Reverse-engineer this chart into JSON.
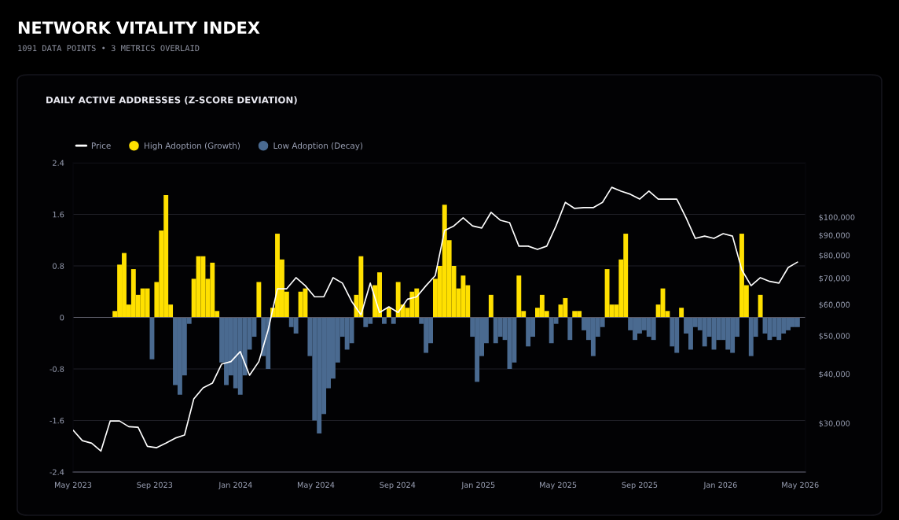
{
  "chart_data": {
    "type": "bar",
    "title": "NETWORK VITALITY INDEX",
    "subtitle": "1091 DATA POINTS • 3 METRICS OVERLAID",
    "annotations": [
      "DAILY ACTIVE ADDRESSES (Z-SCORE DEVIATION)"
    ],
    "x": [
      "2023-07-03",
      "2023-07-10",
      "2023-07-17",
      "2023-07-24",
      "2023-07-31",
      "2023-08-07",
      "2023-08-14",
      "2023-08-21",
      "2023-08-28",
      "2023-09-04",
      "2023-09-11",
      "2023-09-18",
      "2023-09-25",
      "2023-10-02",
      "2023-10-09",
      "2023-10-16",
      "2023-10-23",
      "2023-10-30",
      "2023-11-06",
      "2023-11-13",
      "2023-11-20",
      "2023-11-27",
      "2023-12-04",
      "2023-12-11",
      "2023-12-18",
      "2023-12-25",
      "2024-01-01",
      "2024-01-08",
      "2024-01-15",
      "2024-01-22",
      "2024-01-29",
      "2024-02-05",
      "2024-02-12",
      "2024-02-19",
      "2024-02-26",
      "2024-03-04",
      "2024-03-11",
      "2024-03-18",
      "2024-03-25",
      "2024-04-01",
      "2024-04-08",
      "2024-04-15",
      "2024-04-22",
      "2024-04-29",
      "2024-05-06",
      "2024-05-13",
      "2024-05-20",
      "2024-05-27",
      "2024-06-03",
      "2024-06-10",
      "2024-06-17",
      "2024-06-24",
      "2024-07-01",
      "2024-07-08",
      "2024-07-15",
      "2024-07-22",
      "2024-07-29",
      "2024-08-05",
      "2024-08-12",
      "2024-08-19",
      "2024-08-26",
      "2024-09-02",
      "2024-09-09",
      "2024-09-16",
      "2024-09-23",
      "2024-09-30",
      "2024-10-07",
      "2024-10-14",
      "2024-10-21",
      "2024-10-28",
      "2024-11-04",
      "2024-11-11",
      "2024-11-18",
      "2024-11-25",
      "2024-12-02",
      "2024-12-09",
      "2024-12-16",
      "2024-12-23",
      "2024-12-30",
      "2025-01-06",
      "2025-01-13",
      "2025-01-20",
      "2025-01-27",
      "2025-02-03",
      "2025-02-10",
      "2025-02-17",
      "2025-02-24",
      "2025-03-03",
      "2025-03-10",
      "2025-03-17",
      "2025-03-24",
      "2025-03-31",
      "2025-04-07",
      "2025-04-14",
      "2025-04-21",
      "2025-04-28",
      "2025-05-05",
      "2025-05-12",
      "2025-05-19",
      "2025-05-26",
      "2025-06-02",
      "2025-06-09",
      "2025-06-16",
      "2025-06-23",
      "2025-06-30",
      "2025-07-07",
      "2025-07-14",
      "2025-07-21",
      "2025-07-28",
      "2025-08-04",
      "2025-08-11",
      "2025-08-18",
      "2025-08-25",
      "2025-09-01",
      "2025-09-08",
      "2025-09-15",
      "2025-09-22",
      "2025-09-29",
      "2025-10-06",
      "2025-10-13",
      "2025-10-20",
      "2025-10-27",
      "2025-11-03",
      "2025-11-10",
      "2025-11-17",
      "2025-11-24",
      "2025-12-01",
      "2025-12-08",
      "2025-12-15",
      "2025-12-22",
      "2025-12-29",
      "2026-01-05",
      "2026-01-12",
      "2026-01-19",
      "2026-01-26",
      "2026-02-02",
      "2026-02-09",
      "2026-02-16",
      "2026-02-23",
      "2026-03-02",
      "2026-03-09",
      "2026-03-16",
      "2026-03-23",
      "2026-03-30",
      "2026-04-06",
      "2026-04-13",
      "2026-04-20",
      "2026-04-27"
    ],
    "series": [
      {
        "name": "Price",
        "type": "line",
        "axis": "y2",
        "color": "#ffffff",
        "x": [
          "2023-05-01",
          "2023-05-15",
          "2023-05-29",
          "2023-06-12",
          "2023-06-26",
          "2023-07-10",
          "2023-07-24",
          "2023-08-07",
          "2023-08-21",
          "2023-09-04",
          "2023-09-18",
          "2023-10-02",
          "2023-10-16",
          "2023-10-30",
          "2023-11-13",
          "2023-11-27",
          "2023-12-11",
          "2023-12-25",
          "2024-01-08",
          "2024-01-22",
          "2024-02-05",
          "2024-02-19",
          "2024-03-04",
          "2024-03-18",
          "2024-04-01",
          "2024-04-15",
          "2024-04-29",
          "2024-05-13",
          "2024-05-27",
          "2024-06-10",
          "2024-06-24",
          "2024-07-08",
          "2024-07-22",
          "2024-08-05",
          "2024-08-19",
          "2024-09-02",
          "2024-09-16",
          "2024-09-30",
          "2024-10-14",
          "2024-10-28",
          "2024-11-11",
          "2024-11-25",
          "2024-12-09",
          "2024-12-23",
          "2025-01-06",
          "2025-01-20",
          "2025-02-03",
          "2025-02-17",
          "2025-03-03",
          "2025-03-17",
          "2025-03-31",
          "2025-04-14",
          "2025-04-28",
          "2025-05-12",
          "2025-05-26",
          "2025-06-09",
          "2025-06-23",
          "2025-07-07",
          "2025-07-21",
          "2025-08-04",
          "2025-08-18",
          "2025-09-01",
          "2025-09-15",
          "2025-09-29",
          "2025-10-13",
          "2025-10-27",
          "2025-11-10",
          "2025-11-24",
          "2025-12-08",
          "2025-12-22",
          "2026-01-05",
          "2026-01-19",
          "2026-02-02",
          "2026-02-16",
          "2026-03-02",
          "2026-03-16",
          "2026-03-30",
          "2026-04-13",
          "2026-04-27"
        ],
        "values": [
          28800,
          27100,
          26700,
          25500,
          30400,
          30400,
          29400,
          29300,
          26200,
          26000,
          26700,
          27500,
          28000,
          34600,
          36900,
          37900,
          42400,
          43000,
          45600,
          39700,
          43000,
          51700,
          65800,
          65800,
          70200,
          67000,
          62800,
          62800,
          70200,
          68000,
          61100,
          56500,
          68000,
          57300,
          59200,
          57300,
          61900,
          62800,
          67000,
          71100,
          92500,
          95000,
          99600,
          95000,
          93800,
          102800,
          98200,
          96800,
          84400,
          84400,
          82800,
          84400,
          95000,
          109000,
          105200,
          105700,
          105700,
          109000,
          119000,
          116400,
          114300,
          111100,
          116400,
          111100,
          111100,
          111100,
          99600,
          88300,
          89500,
          88300,
          90800,
          89500,
          73500,
          67000,
          70200,
          68700,
          68000,
          74500,
          76900
        ]
      },
      {
        "name": "High Adoption (Growth)",
        "color": "#ffe000",
        "values": [
          0.1,
          0.82,
          1.0,
          0.2,
          0.75,
          0.35,
          0.45,
          0.45,
          null,
          0.55,
          1.35,
          1.9,
          0.2,
          null,
          null,
          null,
          null,
          0.6,
          0.95,
          0.95,
          0.6,
          0.85,
          0.1,
          null,
          null,
          null,
          null,
          null,
          null,
          null,
          null,
          0.55,
          null,
          null,
          0.15,
          1.3,
          0.9,
          0.4,
          null,
          null,
          0.4,
          0.45,
          null,
          null,
          null,
          null,
          null,
          null,
          null,
          null,
          null,
          null,
          0.35,
          0.95,
          null,
          null,
          0.5,
          0.7,
          null,
          0.15,
          null,
          0.55,
          0.2,
          0.15,
          0.4,
          0.45,
          null,
          null,
          null,
          0.6,
          0.8,
          1.75,
          1.2,
          0.8,
          0.45,
          0.65,
          0.5,
          null,
          null,
          null,
          null,
          0.35,
          null,
          null,
          null,
          null,
          null,
          0.65,
          0.1,
          null,
          null,
          0.15,
          0.35,
          0.1,
          null,
          null,
          0.2,
          0.3,
          null,
          0.1,
          0.1,
          null,
          null,
          null,
          null,
          null,
          0.75,
          0.2,
          0.2,
          0.9,
          1.3,
          null,
          null,
          null,
          null,
          null,
          null,
          0.2,
          0.45,
          0.1,
          null,
          null,
          0.15,
          null,
          null,
          null,
          null,
          null,
          null,
          null,
          null,
          null,
          null,
          null,
          null,
          1.3,
          0.5,
          null,
          null,
          0.35,
          null,
          null,
          null,
          null,
          null,
          null,
          null,
          null
        ]
      },
      {
        "name": "Low Adoption (Decay)",
        "color": "#4a6a90",
        "values": [
          null,
          null,
          null,
          null,
          null,
          null,
          null,
          null,
          -0.65,
          null,
          null,
          null,
          null,
          -1.05,
          -1.2,
          -0.9,
          -0.1,
          null,
          null,
          null,
          null,
          null,
          null,
          -0.7,
          -1.05,
          -0.9,
          -1.1,
          -1.2,
          -0.9,
          -0.5,
          -0.3,
          null,
          -0.6,
          -0.8,
          null,
          null,
          null,
          null,
          -0.15,
          -0.25,
          null,
          null,
          -0.6,
          -1.6,
          -1.8,
          -1.5,
          -1.1,
          -0.95,
          -0.7,
          -0.3,
          -0.5,
          -0.4,
          null,
          null,
          -0.15,
          -0.1,
          null,
          null,
          -0.1,
          null,
          -0.1,
          null,
          null,
          null,
          null,
          null,
          -0.1,
          -0.55,
          -0.4,
          null,
          null,
          null,
          null,
          null,
          null,
          null,
          null,
          -0.3,
          -1.0,
          -0.6,
          -0.4,
          null,
          -0.4,
          -0.3,
          -0.35,
          -0.8,
          -0.7,
          null,
          null,
          -0.45,
          -0.3,
          null,
          null,
          null,
          -0.4,
          -0.1,
          null,
          null,
          -0.35,
          null,
          null,
          -0.2,
          -0.35,
          -0.6,
          -0.3,
          -0.15,
          null,
          null,
          null,
          null,
          null,
          -0.2,
          -0.35,
          -0.25,
          -0.2,
          -0.3,
          -0.35,
          null,
          null,
          null,
          -0.45,
          -0.55,
          null,
          -0.25,
          -0.5,
          -0.15,
          -0.2,
          -0.45,
          -0.3,
          -0.5,
          -0.35,
          -0.35,
          -0.5,
          -0.55,
          -0.3,
          null,
          null,
          -0.6,
          -0.3,
          null,
          -0.25,
          -0.35,
          -0.3,
          -0.35,
          -0.25,
          -0.2,
          -0.15,
          -0.15
        ]
      }
    ],
    "xlim": [
      "2023-05-01",
      "2026-05-09"
    ],
    "xticks": [
      {
        "value": "2023-05-01",
        "label": "May 2023"
      },
      {
        "value": "2023-09-01",
        "label": "Sep 2023"
      },
      {
        "value": "2024-01-01",
        "label": "Jan 2024"
      },
      {
        "value": "2024-05-01",
        "label": "May 2024"
      },
      {
        "value": "2024-09-01",
        "label": "Sep 2024"
      },
      {
        "value": "2025-01-01",
        "label": "Jan 2025"
      },
      {
        "value": "2025-05-01",
        "label": "May 2025"
      },
      {
        "value": "2025-09-01",
        "label": "Sep 2025"
      },
      {
        "value": "2026-01-01",
        "label": "Jan 2026"
      },
      {
        "value": "2026-05-01",
        "label": "May 2026"
      }
    ],
    "ylim": [
      -2.4,
      2.4
    ],
    "yticks": [
      -2.4,
      -1.6,
      -0.8,
      0,
      0.8,
      1.6,
      2.4
    ],
    "log": "y2",
    "y2lim": [
      22560,
      137300
    ],
    "y2ticks": [
      {
        "value": 30000,
        "label": "$30,000"
      },
      {
        "value": 40000,
        "label": "$40,000"
      },
      {
        "value": 50000,
        "label": "$50,000"
      },
      {
        "value": 60000,
        "label": "$60,000"
      },
      {
        "value": 70000,
        "label": "$70,000"
      },
      {
        "value": 80000,
        "label": "$80,000"
      },
      {
        "value": 90000,
        "label": "$90,000"
      },
      {
        "value": 100000,
        "label": "$100,000"
      }
    ],
    "grid": "y",
    "legend": "top left"
  }
}
